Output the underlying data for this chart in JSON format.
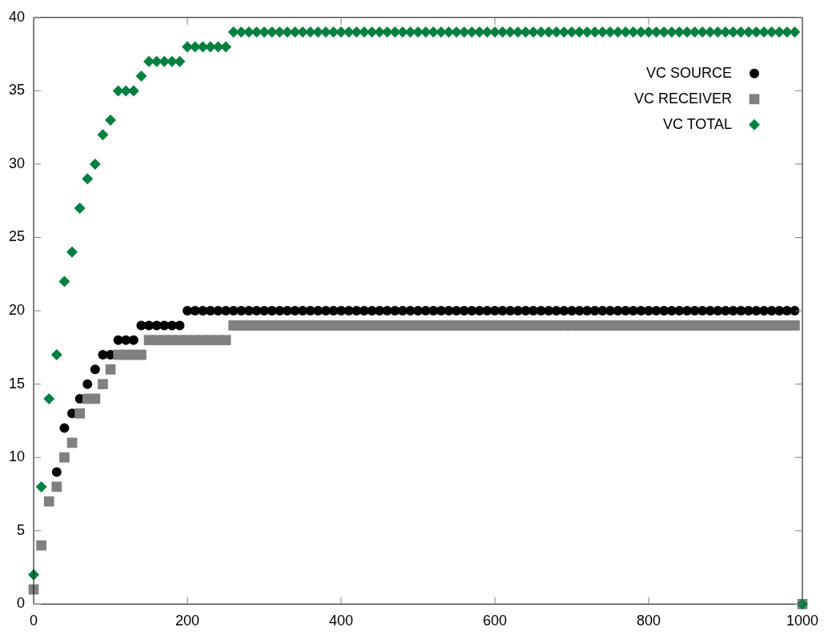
{
  "chart_data": {
    "type": "scatter",
    "x": [
      0,
      10,
      20,
      30,
      40,
      50,
      60,
      70,
      80,
      90,
      100,
      110,
      120,
      130,
      140,
      150,
      160,
      170,
      180,
      190,
      200,
      210,
      220,
      230,
      240,
      250,
      260,
      270,
      280,
      290,
      300,
      310,
      320,
      330,
      340,
      350,
      360,
      370,
      380,
      390,
      400,
      410,
      420,
      430,
      440,
      450,
      460,
      470,
      480,
      490,
      500,
      510,
      520,
      530,
      540,
      550,
      560,
      570,
      580,
      590,
      600,
      610,
      620,
      630,
      640,
      650,
      660,
      670,
      680,
      690,
      700,
      710,
      720,
      730,
      740,
      750,
      760,
      770,
      780,
      790,
      800,
      810,
      820,
      830,
      840,
      850,
      860,
      870,
      880,
      890,
      900,
      910,
      920,
      930,
      940,
      950,
      960,
      970,
      980,
      990,
      1000
    ],
    "series": [
      {
        "name": "VC SOURCE",
        "color": "#000000",
        "marker": "circle",
        "values": [
          null,
          null,
          null,
          9,
          12,
          13,
          14,
          15,
          16,
          17,
          17,
          18,
          18,
          18,
          19,
          19,
          19,
          19,
          19,
          19,
          20,
          20,
          20,
          20,
          20,
          20,
          20,
          20,
          20,
          20,
          20,
          20,
          20,
          20,
          20,
          20,
          20,
          20,
          20,
          20,
          20,
          20,
          20,
          20,
          20,
          20,
          20,
          20,
          20,
          20,
          20,
          20,
          20,
          20,
          20,
          20,
          20,
          20,
          20,
          20,
          20,
          20,
          20,
          20,
          20,
          20,
          20,
          20,
          20,
          20,
          20,
          20,
          20,
          20,
          20,
          20,
          20,
          20,
          20,
          20,
          20,
          20,
          20,
          20,
          20,
          20,
          20,
          20,
          20,
          20,
          20,
          20,
          20,
          20,
          20,
          20,
          20,
          20,
          20,
          20,
          null
        ]
      },
      {
        "name": "VC RECEIVER",
        "color": "#808080",
        "marker": "square",
        "values": [
          1,
          4,
          7,
          8,
          10,
          11,
          13,
          14,
          14,
          15,
          16,
          17,
          17,
          17,
          17,
          18,
          18,
          18,
          18,
          18,
          18,
          18,
          18,
          18,
          18,
          18,
          19,
          19,
          19,
          19,
          19,
          19,
          19,
          19,
          19,
          19,
          19,
          19,
          19,
          19,
          19,
          19,
          19,
          19,
          19,
          19,
          19,
          19,
          19,
          19,
          19,
          19,
          19,
          19,
          19,
          19,
          19,
          19,
          19,
          19,
          19,
          19,
          19,
          19,
          19,
          19,
          19,
          19,
          19,
          19,
          19,
          19,
          19,
          19,
          19,
          19,
          19,
          19,
          19,
          19,
          19,
          19,
          19,
          19,
          19,
          19,
          19,
          19,
          19,
          19,
          19,
          19,
          19,
          19,
          19,
          19,
          19,
          19,
          19,
          19,
          0
        ]
      },
      {
        "name": "VC TOTAL",
        "color": "#008040",
        "marker": "diamond",
        "values": [
          2,
          8,
          14,
          17,
          22,
          24,
          27,
          29,
          30,
          32,
          33,
          35,
          35,
          35,
          36,
          37,
          37,
          37,
          37,
          37,
          38,
          38,
          38,
          38,
          38,
          38,
          39,
          39,
          39,
          39,
          39,
          39,
          39,
          39,
          39,
          39,
          39,
          39,
          39,
          39,
          39,
          39,
          39,
          39,
          39,
          39,
          39,
          39,
          39,
          39,
          39,
          39,
          39,
          39,
          39,
          39,
          39,
          39,
          39,
          39,
          39,
          39,
          39,
          39,
          39,
          39,
          39,
          39,
          39,
          39,
          39,
          39,
          39,
          39,
          39,
          39,
          39,
          39,
          39,
          39,
          39,
          39,
          39,
          39,
          39,
          39,
          39,
          39,
          39,
          39,
          39,
          39,
          39,
          39,
          39,
          39,
          39,
          39,
          39,
          39,
          0
        ]
      }
    ],
    "xlim": [
      0,
      1000
    ],
    "xticks": [
      0,
      200,
      400,
      600,
      800,
      1000
    ],
    "ylim": [
      0,
      40
    ],
    "yticks": [
      0,
      5,
      10,
      15,
      20,
      25,
      30,
      35,
      40
    ],
    "legend": "top right"
  }
}
